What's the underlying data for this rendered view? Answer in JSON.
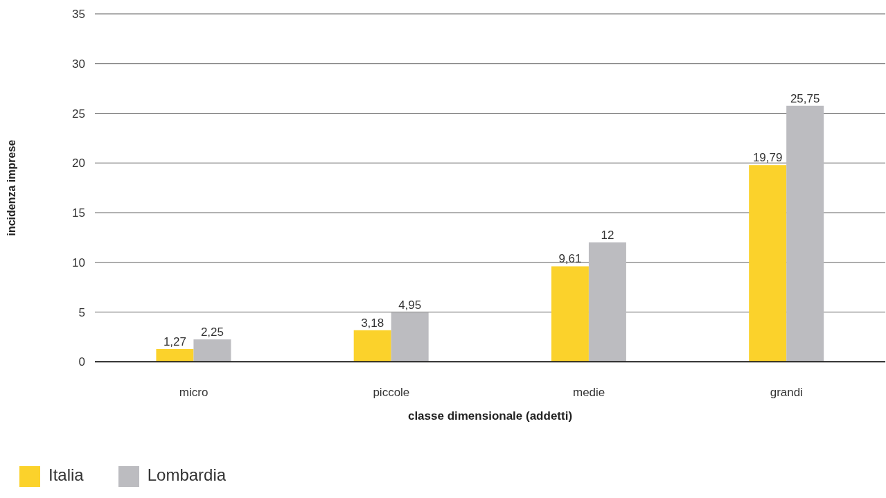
{
  "chart_data": {
    "type": "bar",
    "xlabel": "classe dimensionale (addetti)",
    "ylabel": "incidenza imprese",
    "categories": [
      "micro",
      "piccole",
      "medie",
      "grandi"
    ],
    "series": [
      {
        "name": "Italia",
        "color": "#fbd22b",
        "values": [
          1.27,
          3.18,
          9.61,
          19.79
        ],
        "value_labels": [
          "1,27",
          "3,18",
          "9,61",
          "19,79"
        ]
      },
      {
        "name": "Lombardia",
        "color": "#bcbcc0",
        "values": [
          2.25,
          4.95,
          12,
          25.75
        ],
        "value_labels": [
          "2,25",
          "4,95",
          "12",
          "25,75"
        ]
      }
    ],
    "ylim": [
      0,
      35
    ],
    "yticks": [
      0,
      5,
      10,
      15,
      20,
      25,
      30,
      35
    ],
    "grid": "y",
    "legend": "bottom left"
  }
}
